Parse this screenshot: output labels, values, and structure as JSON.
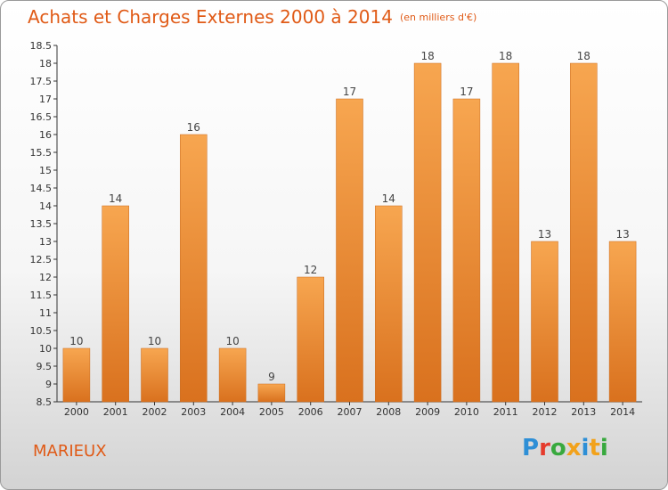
{
  "header": {
    "title": "Achats et Charges Externes 2000 à 2014",
    "unit": "(en milliers d'€)"
  },
  "footer": {
    "town": "MARIEUX",
    "logo": {
      "text": "Proxiti"
    }
  },
  "colors": {
    "accent": "#e05a16",
    "bar_light": "#f7a650",
    "bar_dark": "#d9711e",
    "logo_letters": [
      "#2e8fd6",
      "#e53b2c",
      "#38a93e",
      "#f2a21b",
      "#2e8fd6",
      "#f2a21b",
      "#38a93e"
    ]
  },
  "chart_data": {
    "type": "bar",
    "categories": [
      "2000",
      "2001",
      "2002",
      "2003",
      "2004",
      "2005",
      "2006",
      "2007",
      "2008",
      "2009",
      "2010",
      "2011",
      "2012",
      "2013",
      "2014"
    ],
    "values": [
      10,
      14,
      10,
      16,
      10,
      9,
      12,
      17,
      14,
      18,
      17,
      18,
      13,
      18,
      13
    ],
    "ylim": [
      8.5,
      18.5
    ],
    "yticks": [
      8.5,
      9,
      9.5,
      10,
      10.5,
      11,
      11.5,
      12,
      12.5,
      13,
      13.5,
      14,
      14.5,
      15,
      15.5,
      16,
      16.5,
      17,
      17.5,
      18,
      18.5
    ],
    "grid": false,
    "data_labels": true
  }
}
